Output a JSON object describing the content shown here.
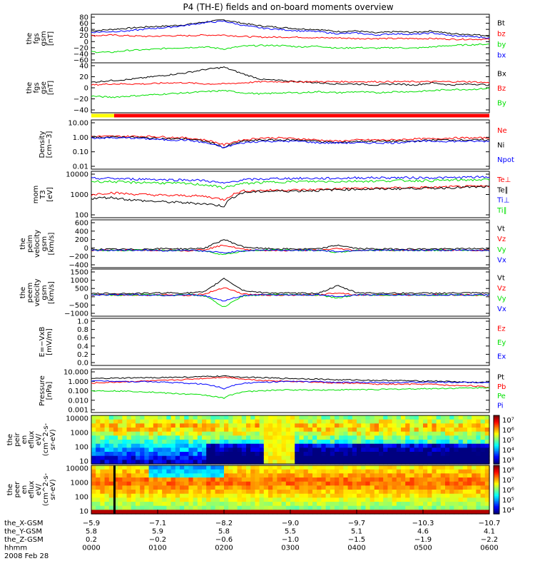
{
  "title": "P4 (TH-E) fields and on-board moments overview",
  "colors": {
    "black": "#000000",
    "red": "#ff0000",
    "green": "#00e000",
    "blue": "#0000ff",
    "yellow": "#ffff00"
  },
  "chart_data": [
    {
      "type": "line",
      "id": "fgs_gsm",
      "ylabel": [
        "the",
        "fgs",
        "gsm",
        "[nT]"
      ],
      "ylim": [
        -60,
        80
      ],
      "yticks": [
        "80",
        "60",
        "40",
        "20",
        "0",
        "−20",
        "−40",
        "−60"
      ],
      "series": [
        {
          "name": "Bt",
          "color": "#000000",
          "values": [
            32,
            36,
            40,
            44,
            46,
            50,
            58,
            64,
            54,
            46,
            42,
            38,
            36,
            30,
            32,
            26,
            30,
            28,
            32,
            24,
            22,
            18
          ]
        },
        {
          "name": "bz",
          "color": "#ff0000",
          "values": [
            18,
            20,
            18,
            16,
            18,
            18,
            20,
            20,
            16,
            14,
            14,
            14,
            12,
            12,
            10,
            10,
            10,
            10,
            10,
            8,
            8,
            8
          ]
        },
        {
          "name": "by",
          "color": "#00e000",
          "values": [
            -28,
            -30,
            -24,
            -22,
            -18,
            -16,
            -14,
            -20,
            -12,
            -10,
            -10,
            -14,
            -12,
            -18,
            -16,
            -18,
            -16,
            -18,
            -14,
            -10,
            -8,
            -6
          ]
        },
        {
          "name": "bx",
          "color": "#0000ff",
          "values": [
            28,
            30,
            32,
            38,
            42,
            48,
            56,
            60,
            48,
            40,
            36,
            32,
            30,
            24,
            26,
            20,
            24,
            22,
            26,
            18,
            16,
            12
          ]
        }
      ]
    },
    {
      "type": "line",
      "id": "fgs_gse",
      "ylabel": [
        "the",
        "fgs",
        "gse",
        "[nT]"
      ],
      "ylim": [
        -50,
        40
      ],
      "yticks": [
        "40",
        "20",
        "0",
        "−20",
        "−40"
      ],
      "series": [
        {
          "name": "Bx",
          "color": "#000000",
          "values": [
            5,
            8,
            10,
            14,
            18,
            22,
            28,
            32,
            20,
            10,
            8,
            6,
            4,
            2,
            2,
            0,
            2,
            0,
            4,
            0,
            2,
            0
          ]
        },
        {
          "name": "Bz",
          "color": "#ff0000",
          "values": [
            0,
            2,
            2,
            2,
            4,
            4,
            2,
            2,
            4,
            6,
            6,
            6,
            6,
            6,
            6,
            6,
            6,
            6,
            6,
            6,
            6,
            4
          ]
        },
        {
          "name": "By",
          "color": "#00e000",
          "values": [
            -20,
            -22,
            -20,
            -18,
            -16,
            -14,
            -12,
            -10,
            -14,
            -16,
            -14,
            -14,
            -12,
            -14,
            -12,
            -14,
            -12,
            -12,
            -10,
            -8,
            -8,
            -6
          ]
        }
      ]
    },
    {
      "type": "line",
      "id": "density",
      "scale": "log",
      "ylabel": [
        "Density",
        "[cm−3]"
      ],
      "ylim": [
        0.01,
        10
      ],
      "yticks": [
        "10.00",
        "1.00",
        "0.10",
        "0.01"
      ],
      "series": [
        {
          "name": "Ne",
          "color": "#ff0000",
          "values": [
            1.0,
            1.0,
            1.0,
            1.0,
            0.9,
            0.8,
            0.6,
            0.3,
            0.6,
            0.8,
            0.8,
            0.7,
            0.6,
            0.5,
            0.6,
            0.6,
            0.6,
            0.7,
            0.7,
            0.8,
            0.8,
            0.8
          ]
        },
        {
          "name": "Ni",
          "color": "#000000",
          "values": [
            0.9,
            0.9,
            0.9,
            0.8,
            0.7,
            0.7,
            0.5,
            0.2,
            0.5,
            0.6,
            0.6,
            0.6,
            0.5,
            0.4,
            0.5,
            0.5,
            0.5,
            0.5,
            0.6,
            0.6,
            0.6,
            0.6
          ]
        },
        {
          "name": "Npot",
          "color": "#0000ff",
          "values": [
            0.8,
            0.8,
            0.8,
            0.7,
            0.6,
            0.6,
            0.4,
            0.2,
            0.4,
            0.5,
            0.5,
            0.5,
            0.4,
            0.4,
            0.4,
            0.4,
            0.4,
            0.5,
            0.5,
            0.5,
            0.5,
            0.5
          ]
        }
      ]
    },
    {
      "type": "line",
      "id": "temperature",
      "scale": "log",
      "ylabel": [
        "mom",
        "T3",
        "[eV]"
      ],
      "ylim": [
        100,
        15000
      ],
      "yticks": [
        "10000",
        "1000",
        "100"
      ],
      "series": [
        {
          "name": "Te⊥",
          "color": "#ff0000",
          "values": [
            1200,
            1500,
            1300,
            1200,
            1100,
            1100,
            1000,
            700,
            1800,
            1900,
            2000,
            2000,
            2100,
            2300,
            2400,
            2400,
            2500,
            2600,
            2600,
            2800,
            2900,
            3000
          ]
        },
        {
          "name": "Te∥",
          "color": "#000000",
          "values": [
            800,
            900,
            700,
            600,
            550,
            500,
            450,
            350,
            1500,
            1700,
            1800,
            1800,
            1900,
            2100,
            2200,
            2200,
            2300,
            2400,
            2400,
            2600,
            2700,
            2800
          ]
        },
        {
          "name": "Ti⊥",
          "color": "#0000ff",
          "values": [
            7000,
            7000,
            6500,
            6500,
            6000,
            6000,
            5500,
            4000,
            6000,
            6500,
            7000,
            7000,
            7000,
            7000,
            7500,
            7500,
            7500,
            7500,
            7500,
            7500,
            8000,
            8000
          ]
        },
        {
          "name": "Ti∥",
          "color": "#00e000",
          "values": [
            5000,
            5000,
            4500,
            4500,
            4200,
            4000,
            3500,
            2500,
            4000,
            4500,
            4800,
            5000,
            5000,
            5000,
            5200,
            5200,
            5500,
            5500,
            5500,
            5800,
            6000,
            6000
          ]
        }
      ]
    },
    {
      "type": "line",
      "id": "peim_velocity",
      "ylabel": [
        "the",
        "peim",
        "velocity",
        "gsm",
        "[km/s]"
      ],
      "ylim": [
        -400,
        700
      ],
      "yticks": [
        "600",
        "400",
        "200",
        "0",
        "−200",
        "−400"
      ],
      "series": [
        {
          "name": "Vt",
          "color": "#000000",
          "values": [
            20,
            25,
            20,
            30,
            40,
            30,
            50,
            250,
            80,
            40,
            30,
            30,
            30,
            120,
            40,
            30,
            30,
            30,
            30,
            30,
            40,
            30
          ]
        },
        {
          "name": "Vz",
          "color": "#ff0000",
          "values": [
            0,
            5,
            0,
            -5,
            10,
            -10,
            20,
            120,
            20,
            0,
            -10,
            0,
            0,
            40,
            0,
            0,
            0,
            0,
            0,
            0,
            0,
            0
          ]
        },
        {
          "name": "Vy",
          "color": "#00e000",
          "values": [
            0,
            -5,
            0,
            5,
            -10,
            10,
            -20,
            -100,
            -20,
            0,
            10,
            0,
            0,
            -50,
            0,
            0,
            0,
            0,
            0,
            0,
            0,
            0
          ]
        },
        {
          "name": "Vx",
          "color": "#0000ff",
          "values": [
            0,
            0,
            5,
            0,
            -10,
            5,
            -20,
            -60,
            -10,
            5,
            0,
            0,
            0,
            -30,
            0,
            0,
            0,
            0,
            0,
            0,
            0,
            0
          ]
        }
      ]
    },
    {
      "type": "line",
      "id": "peem_velocity",
      "ylabel": [
        "the",
        "peem",
        "velocity",
        "gsm",
        "[km/s]"
      ],
      "ylim": [
        -1400,
        1700
      ],
      "yticks": [
        "1500",
        "1000",
        "500",
        "0",
        "−500",
        "−1000"
      ],
      "series": [
        {
          "name": "Vt",
          "color": "#000000",
          "values": [
            80,
            100,
            90,
            110,
            140,
            120,
            200,
            1100,
            300,
            150,
            120,
            110,
            120,
            600,
            150,
            120,
            110,
            120,
            110,
            120,
            130,
            110
          ]
        },
        {
          "name": "Vz",
          "color": "#ff0000",
          "values": [
            0,
            20,
            0,
            -20,
            30,
            -30,
            60,
            500,
            60,
            0,
            -30,
            0,
            0,
            150,
            0,
            0,
            0,
            0,
            0,
            0,
            0,
            0
          ]
        },
        {
          "name": "Vy",
          "color": "#00e000",
          "values": [
            0,
            -20,
            0,
            20,
            -30,
            30,
            -60,
            -800,
            -60,
            0,
            30,
            0,
            0,
            -200,
            0,
            0,
            0,
            0,
            0,
            0,
            0,
            0
          ]
        },
        {
          "name": "Vx",
          "color": "#0000ff",
          "values": [
            0,
            0,
            20,
            0,
            -40,
            20,
            -60,
            -400,
            -40,
            20,
            0,
            0,
            0,
            -100,
            0,
            0,
            0,
            0,
            0,
            0,
            0,
            0
          ]
        }
      ]
    },
    {
      "type": "line",
      "id": "efield",
      "ylabel": [
        "E=−VxB",
        "[mV/m]"
      ],
      "ylim": [
        0,
        1
      ],
      "yticks": [
        "1.0",
        "0.8",
        "0.6",
        "0.4",
        "0.2",
        "0.0"
      ],
      "series": [
        {
          "name": "Ez",
          "color": "#ff0000",
          "values": []
        },
        {
          "name": "Ey",
          "color": "#00e000",
          "values": []
        },
        {
          "name": "Ex",
          "color": "#0000ff",
          "values": []
        }
      ]
    },
    {
      "type": "line",
      "id": "pressure",
      "scale": "log",
      "ylabel": [
        "Pressure",
        "[nPa]"
      ],
      "ylim": [
        0.001,
        10
      ],
      "yticks": [
        "10.000",
        "1.000",
        "0.100",
        "0.010",
        "0.001"
      ],
      "series": [
        {
          "name": "Pt",
          "color": "#000000",
          "values": [
            1.3,
            1.4,
            1.5,
            1.6,
            1.7,
            1.8,
            2.0,
            2.2,
            1.8,
            1.6,
            1.4,
            1.3,
            1.2,
            1.0,
            1.0,
            0.9,
            0.9,
            0.8,
            0.8,
            0.7,
            0.6,
            0.6
          ]
        },
        {
          "name": "Pb",
          "color": "#ff0000",
          "values": [
            0.5,
            0.6,
            0.7,
            0.8,
            0.9,
            1.1,
            1.4,
            1.8,
            1.2,
            0.9,
            0.8,
            0.7,
            0.6,
            0.5,
            0.5,
            0.4,
            0.4,
            0.4,
            0.4,
            0.3,
            0.3,
            0.2
          ]
        },
        {
          "name": "Pe",
          "color": "#00e000",
          "values": [
            0.1,
            0.1,
            0.09,
            0.08,
            0.06,
            0.05,
            0.04,
            0.02,
            0.08,
            0.1,
            0.12,
            0.12,
            0.12,
            0.12,
            0.13,
            0.13,
            0.14,
            0.15,
            0.16,
            0.17,
            0.18,
            0.2
          ]
        },
        {
          "name": "Pi",
          "color": "#0000ff",
          "values": [
            0.8,
            0.8,
            0.7,
            0.7,
            0.6,
            0.5,
            0.4,
            0.15,
            0.5,
            0.6,
            0.7,
            0.7,
            0.7,
            0.6,
            0.6,
            0.6,
            0.6,
            0.6,
            0.6,
            0.6,
            0.6,
            0.6
          ]
        }
      ]
    },
    {
      "type": "heatmap",
      "id": "peir_spectrogram",
      "ylabel": [
        "the",
        "peir",
        "en",
        "eflux",
        "eV/",
        "(cm^2-s-",
        "sr-eV)"
      ],
      "yticks": [
        "10000",
        "1000",
        "100",
        "10"
      ],
      "colorbar_ticks": [
        "10⁷",
        "10⁶",
        "10⁵",
        "10⁴",
        "10³"
      ]
    },
    {
      "type": "heatmap",
      "id": "peer_spectrogram",
      "ylabel": [
        "the",
        "peer",
        "en",
        "eflux",
        "eV/",
        "(cm^2-s-",
        "sr-eV)"
      ],
      "yticks": [
        "10000",
        "1000",
        "100",
        "10"
      ],
      "colorbar_ticks": [
        "10⁸",
        "10⁷",
        "10⁶",
        "10⁵",
        "10⁴"
      ]
    }
  ],
  "footer": {
    "rows": [
      {
        "label": "the_X-GSM",
        "values": [
          "−5.9",
          "−7.1",
          "−8.2",
          "−9.0",
          "−9.7",
          "−10.3",
          "−10.7"
        ]
      },
      {
        "label": "the_Y-GSM",
        "values": [
          "5.8",
          "5.9",
          "5.8",
          "5.5",
          "5.1",
          "4.6",
          "4.1"
        ]
      },
      {
        "label": "the_Z-GSM",
        "values": [
          "0.2",
          "−0.2",
          "−0.6",
          "−1.0",
          "−1.5",
          "−1.9",
          "−2.2"
        ]
      },
      {
        "label": "hhmm",
        "values": [
          "0000",
          "0100",
          "0200",
          "0300",
          "0400",
          "0500",
          "0600"
        ]
      }
    ],
    "date": "2008 Feb 28"
  }
}
